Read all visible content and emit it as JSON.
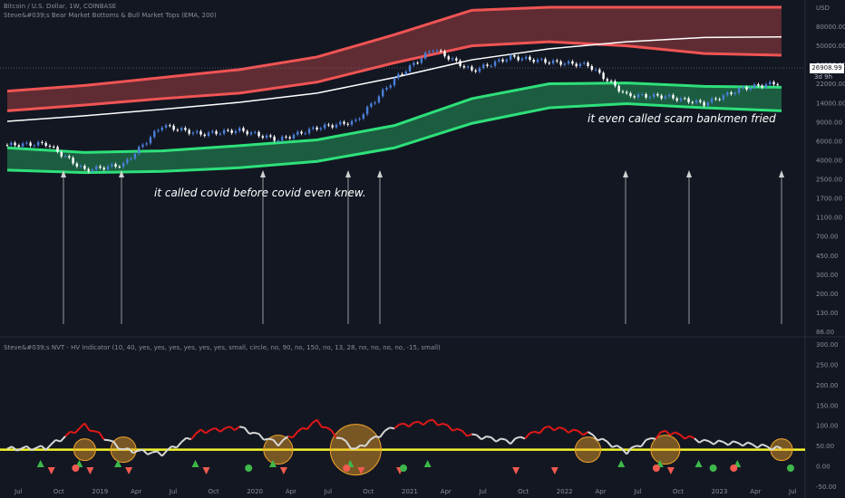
{
  "header": {
    "symbol_line": "Bitcoin / U.S. Dollar, 1W, COINBASE",
    "overlay_line": "Steve&#039;s Bear Market Bottoms & Bull Market Tops (EMA, 200)",
    "indicator_line": "Steve&#039;s NVT - HV Indicator (10, 40, yes, yes, yes, yes, yes, yes, small, circle, no, 90, no, 150, no, 13, 28, no, no, no, no, -15, small)"
  },
  "annotations": {
    "covid": "it called covid before covid even knew.",
    "sbf": "it even called scam bankmen fried"
  },
  "price_tag": {
    "value": "26908.99",
    "countdown": "3d 9h"
  },
  "colors": {
    "background": "#131722",
    "top_band": "#f05454",
    "bottom_band": "#2ee07a",
    "white_line": "#ffffff",
    "nvt_red": "#e01818",
    "nvt_white": "#d8d8d8",
    "threshold": "#f5f52a",
    "up_marker": "#3db84a",
    "down_marker": "#f05a50",
    "bubble": "#f4a62a"
  },
  "chart_data": [
    {
      "type": "line",
      "title": "Bitcoin / U.S. Dollar, 1W, COINBASE",
      "y_scale": "log",
      "ylim": [
        86,
        150000
      ],
      "y_ticks": [
        "86.00",
        "130.00",
        "200.00",
        "300.00",
        "450.00",
        "700.00",
        "1100.00",
        "1700.00",
        "2500.00",
        "4000.00",
        "6000.00",
        "9000.00",
        "14000.00",
        "22000.00",
        "34000.00",
        "50000.00",
        "80000.00",
        "USD"
      ],
      "x_ticks": [
        "Jul",
        "Oct",
        "2019",
        "Apr",
        "Jul",
        "Oct",
        "2020",
        "Apr",
        "Jul",
        "Oct",
        "2021",
        "Apr",
        "Jul",
        "Oct",
        "2022",
        "Apr",
        "Jul",
        "Oct",
        "2023",
        "Apr",
        "Jul"
      ],
      "series": [
        {
          "name": "",
          "role": "price",
          "x": [
            0,
            1,
            2,
            3,
            4,
            5,
            6,
            7,
            8,
            9,
            10,
            11,
            12,
            13,
            14,
            15,
            16,
            17,
            18,
            19,
            20
          ],
          "y": [
            6400,
            6600,
            3600,
            4100,
            10000,
            8200,
            9000,
            7200,
            9500,
            11000,
            29000,
            58000,
            35000,
            48000,
            43000,
            40000,
            20000,
            19500,
            16500,
            23500,
            27000
          ]
        },
        {
          "name": "",
          "role": "white_ema",
          "x": [
            0,
            2,
            4,
            6,
            8,
            10,
            12,
            14,
            16,
            18,
            20
          ],
          "y": [
            11000,
            12500,
            14500,
            17000,
            21000,
            30000,
            45000,
            58000,
            68000,
            75000,
            76000
          ]
        },
        {
          "name": "",
          "role": "red_band_upper",
          "x": [
            0,
            2,
            4,
            6,
            8,
            10,
            12,
            14,
            16,
            18,
            20
          ],
          "y": [
            22000,
            25000,
            30000,
            36000,
            48000,
            80000,
            140000,
            150000,
            150000,
            150000,
            150000
          ]
        },
        {
          "name": "",
          "role": "red_band_lower",
          "x": [
            0,
            2,
            4,
            6,
            8,
            10,
            12,
            14,
            16,
            18,
            20
          ],
          "y": [
            14000,
            16000,
            18500,
            21000,
            27000,
            42000,
            62000,
            68000,
            62000,
            52000,
            50000
          ]
        },
        {
          "name": "",
          "role": "green_band_upper",
          "x": [
            0,
            2,
            4,
            6,
            8,
            10,
            12,
            14,
            16,
            18,
            20
          ],
          "y": [
            6000,
            5400,
            5600,
            6300,
            7200,
            10000,
            18500,
            26000,
            26500,
            24500,
            24000
          ]
        },
        {
          "name": "",
          "role": "green_band_lower",
          "x": [
            0,
            2,
            4,
            6,
            8,
            10,
            12,
            14,
            16,
            18,
            20
          ],
          "y": [
            3600,
            3400,
            3500,
            3800,
            4400,
            6000,
            10500,
            15000,
            16500,
            15000,
            14000
          ]
        }
      ]
    },
    {
      "type": "line",
      "title": "Steve&#039;s NVT - HV Indicator",
      "ylim": [
        -30,
        300
      ],
      "y_ticks": [
        "300.00",
        "250.00",
        "200.00",
        "150.00",
        "100.00",
        "50.00",
        "0.00",
        "-50.00"
      ],
      "threshold": 40,
      "series": [
        {
          "name": "",
          "role": "nvt",
          "x": [
            0,
            1,
            2,
            3,
            4,
            5,
            6,
            7,
            8,
            9,
            10,
            11,
            12,
            13,
            14,
            15,
            16,
            17,
            18,
            19,
            20
          ],
          "y": [
            42,
            45,
            100,
            40,
            30,
            85,
            95,
            55,
            110,
            40,
            98,
            110,
            75,
            60,
            95,
            80,
            35,
            85,
            60,
            55,
            42
          ]
        }
      ],
      "markers": {
        "up_triangles": [
          1,
          2,
          3,
          5,
          7,
          9,
          11,
          16,
          17,
          18,
          19
        ],
        "down_triangles": [
          1,
          2,
          3,
          5,
          7,
          9,
          10,
          13,
          14,
          17
        ],
        "circles": [
          2,
          6,
          9,
          10,
          17,
          18,
          19,
          20
        ]
      },
      "bubbles": [
        2,
        3,
        7,
        9,
        15,
        17,
        20
      ]
    }
  ]
}
